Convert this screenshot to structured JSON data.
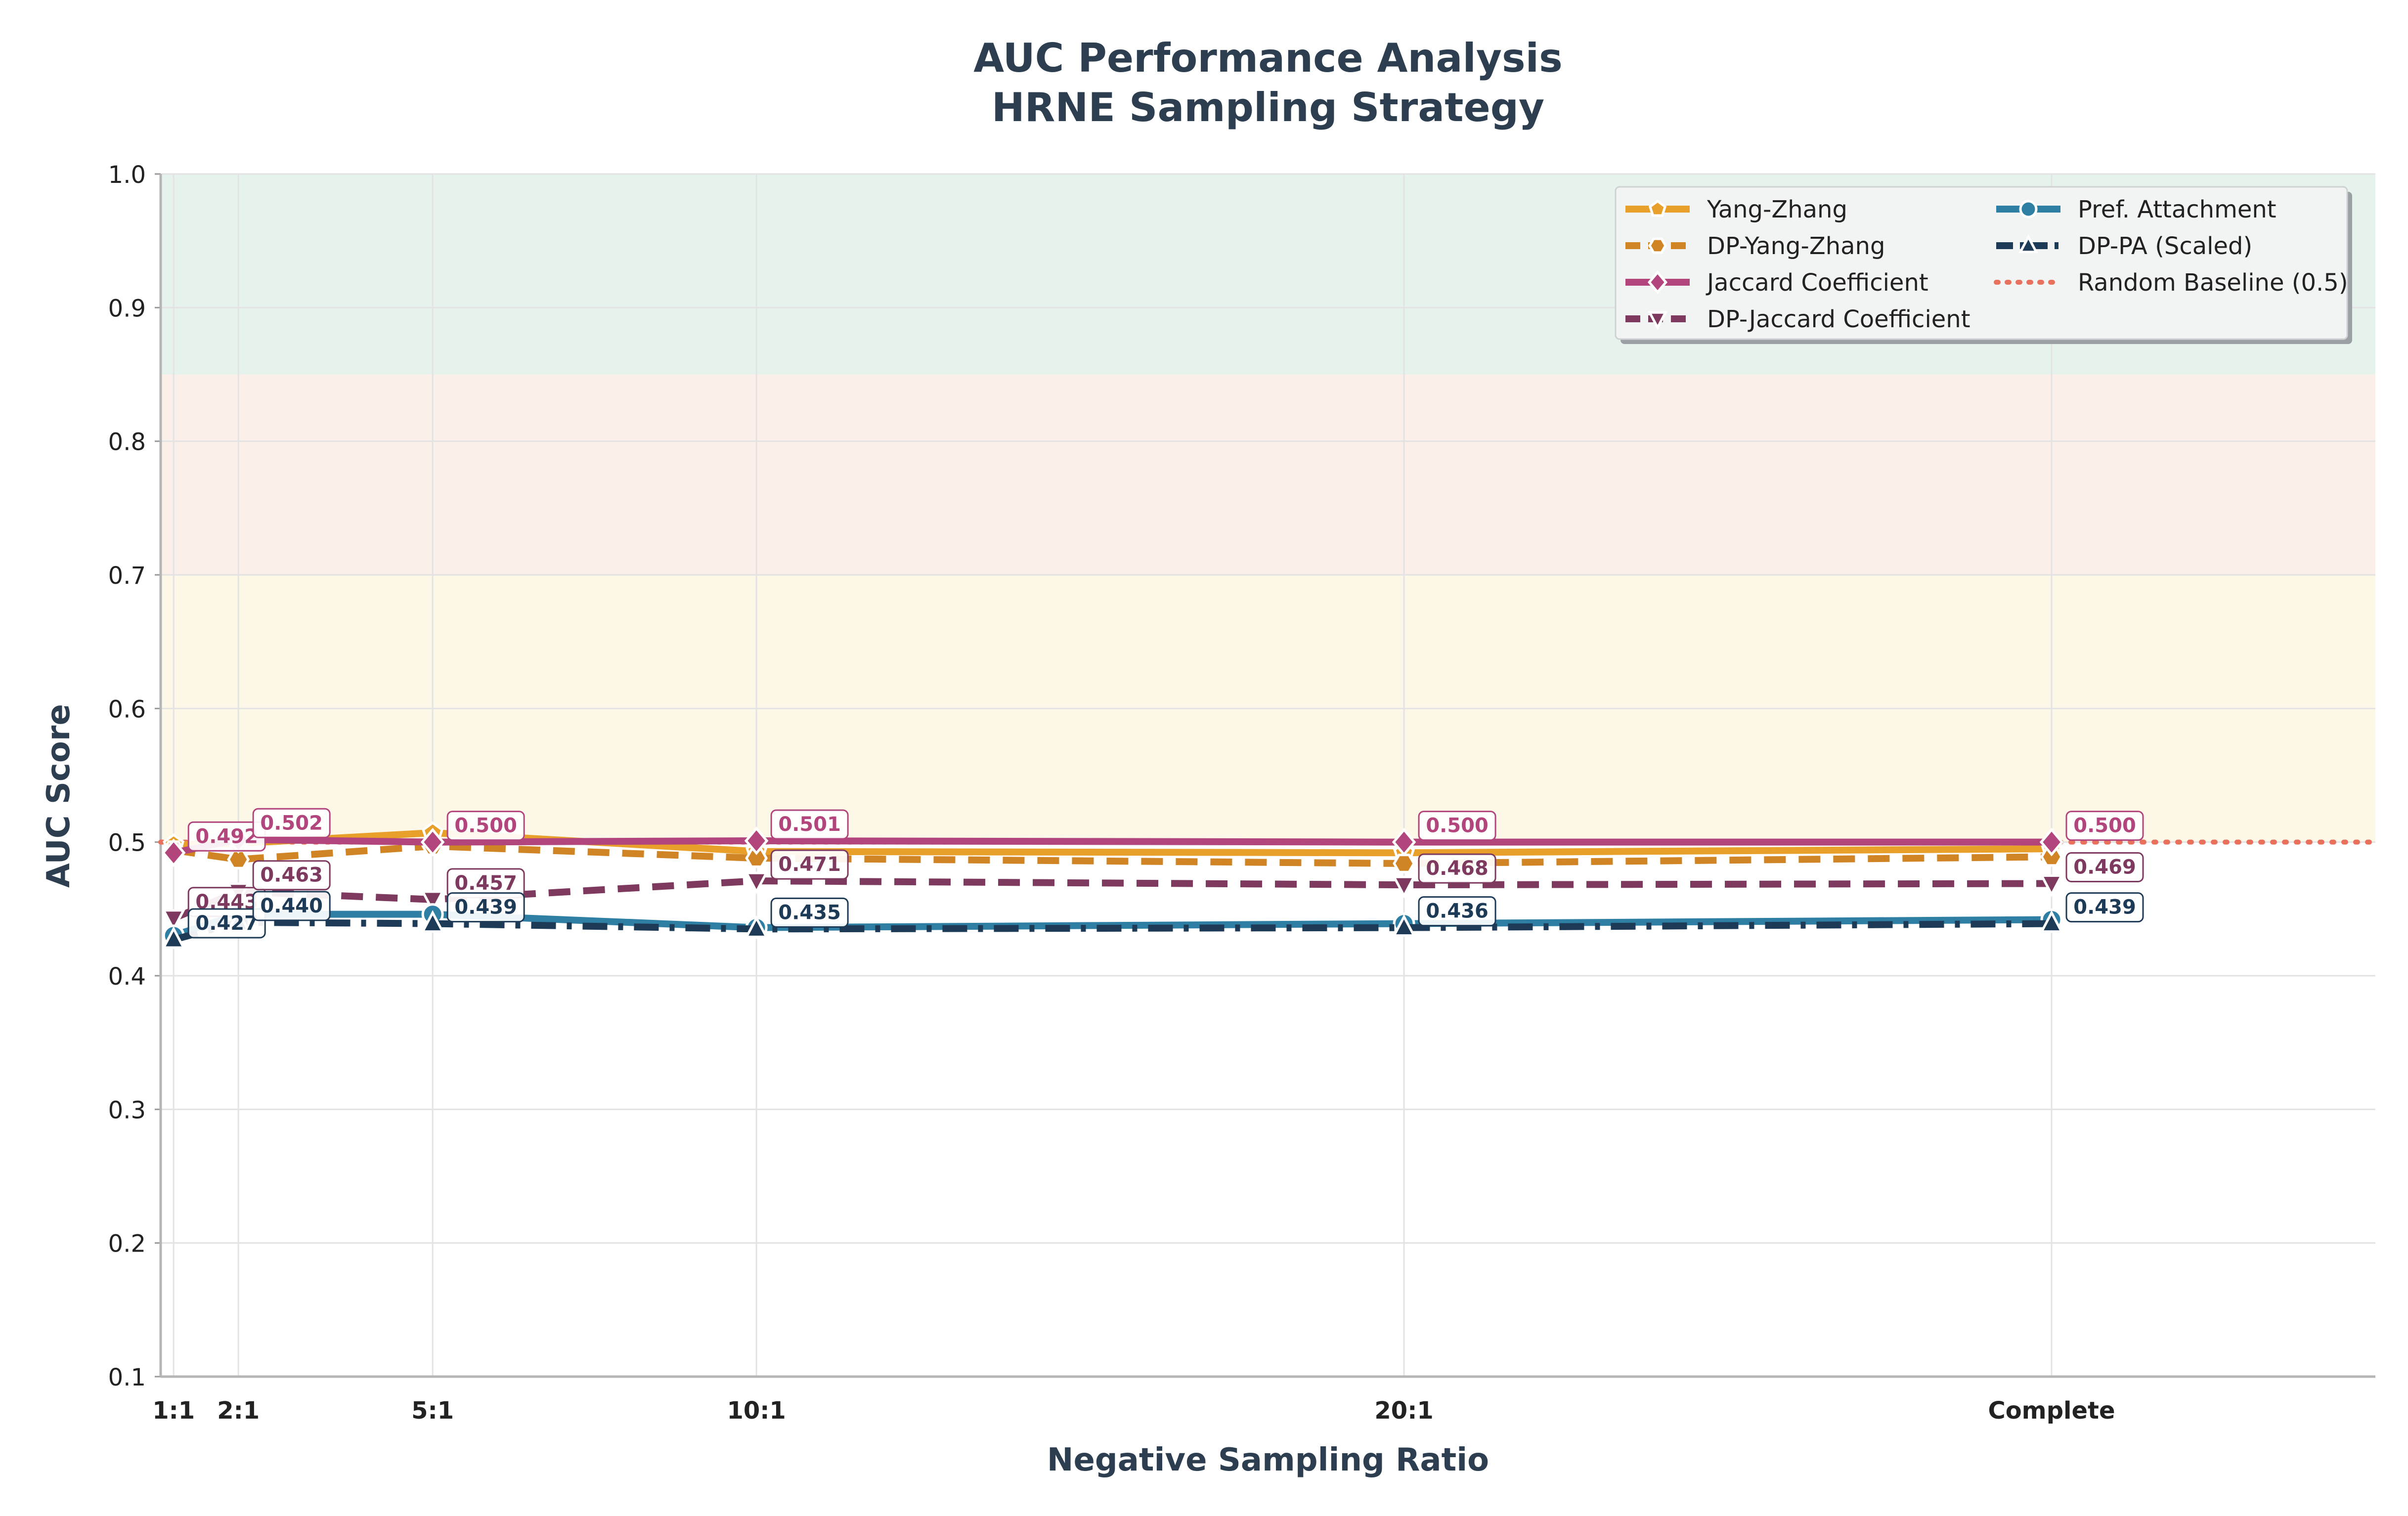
{
  "chart_data": {
    "type": "line",
    "title": "AUC Performance Analysis",
    "subtitle": "HRNE Sampling Strategy",
    "xlabel": "Negative Sampling Ratio",
    "ylabel": "AUC Score",
    "ylim": [
      0.1,
      1.0
    ],
    "yticks": [
      "0.1",
      "0.2",
      "0.3",
      "0.4",
      "0.5",
      "0.6",
      "0.7",
      "0.8",
      "0.9",
      "1.0"
    ],
    "x_positions": [
      1,
      2,
      5,
      10,
      20,
      30
    ],
    "xlim": [
      0.8,
      35
    ],
    "categories": [
      "1:1",
      "2:1",
      "5:1",
      "10:1",
      "20:1",
      "Complete"
    ],
    "grid": true,
    "legend_position": "top-right",
    "bands": [
      {
        "from": 0.85,
        "to": 1.0,
        "color": "#e6f3ec"
      },
      {
        "from": 0.7,
        "to": 0.85,
        "color": "#fbefe9"
      },
      {
        "from": 0.5,
        "to": 0.7,
        "color": "#fcf7e6"
      }
    ],
    "baseline": {
      "name": "Random Baseline (0.5)",
      "value": 0.5,
      "color": "#e8715e"
    },
    "series": [
      {
        "name": "Yang-Zhang",
        "values": [
          0.498,
          0.499,
          0.507,
          0.493,
          0.492,
          0.495
        ],
        "color": "#e8a02a",
        "marker": "pentagon",
        "dash": "solid",
        "labels": [
          null,
          null,
          null,
          null,
          null,
          null
        ]
      },
      {
        "name": "DP-Yang-Zhang",
        "values": [
          0.494,
          0.487,
          0.497,
          0.488,
          0.484,
          0.489
        ],
        "color": "#d08424",
        "marker": "hexagon",
        "dash": "dashed",
        "labels": [
          null,
          null,
          null,
          null,
          null,
          null
        ]
      },
      {
        "name": "Jaccard Coefficient",
        "values": [
          0.492,
          0.502,
          0.5,
          0.501,
          0.5,
          0.5
        ],
        "color": "#b2457c",
        "marker": "diamond",
        "dash": "solid",
        "labels": [
          "0.492",
          "0.502",
          "0.500",
          "0.501",
          "0.500",
          "0.500"
        ]
      },
      {
        "name": "DP-Jaccard Coefficient",
        "values": [
          0.443,
          0.463,
          0.457,
          0.471,
          0.468,
          0.469
        ],
        "color": "#7d3a5e",
        "marker": "triangle-down",
        "dash": "dashed",
        "labels": [
          "0.443",
          "0.463",
          "0.457",
          "0.471",
          "0.468",
          "0.469"
        ]
      },
      {
        "name": "Pref. Attachment",
        "values": [
          0.43,
          0.446,
          0.446,
          0.436,
          0.439,
          0.442
        ],
        "color": "#2e7fa3",
        "marker": "circle",
        "dash": "solid",
        "labels": [
          null,
          null,
          null,
          null,
          null,
          null
        ]
      },
      {
        "name": "DP-PA (Scaled)",
        "values": [
          0.427,
          0.44,
          0.439,
          0.435,
          0.436,
          0.439
        ],
        "color": "#1d3a56",
        "marker": "triangle-up",
        "dash": "dashdot",
        "labels": [
          "0.427",
          "0.440",
          "0.439",
          "0.435",
          "0.436",
          "0.439"
        ]
      }
    ]
  }
}
